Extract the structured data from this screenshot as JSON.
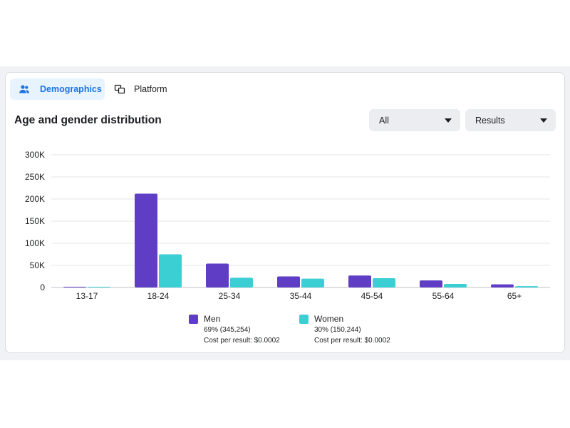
{
  "tabs": [
    {
      "label": "Demographics",
      "icon": "people-icon",
      "active": true
    },
    {
      "label": "Platform",
      "icon": "platform-icon",
      "active": false
    }
  ],
  "section_title": "Age and gender distribution",
  "filters": {
    "audience": "All",
    "metric": "Results"
  },
  "colors": {
    "men": "#5f3dc4",
    "women": "#3bcfd4",
    "accent": "#1b74e4"
  },
  "legend": [
    {
      "name": "Men",
      "share": "69% (345,254)",
      "cost": "Cost per result: $0.0002"
    },
    {
      "name": "Women",
      "share": "30% (150,244)",
      "cost": "Cost per result: $0.0002"
    }
  ],
  "chart_data": {
    "type": "bar",
    "categories": [
      "13-17",
      "18-24",
      "25-34",
      "35-44",
      "45-54",
      "55-64",
      "65+"
    ],
    "series": [
      {
        "name": "Men",
        "values": [
          1000,
          212000,
          54000,
          25000,
          27000,
          16000,
          7000
        ]
      },
      {
        "name": "Women",
        "values": [
          700,
          75000,
          22000,
          20000,
          21000,
          8000,
          3000
        ]
      }
    ],
    "y_ticks": [
      0,
      50000,
      100000,
      150000,
      200000,
      250000,
      300000
    ],
    "y_tick_labels": [
      "0",
      "50K",
      "100K",
      "150K",
      "200K",
      "250K",
      "300K"
    ],
    "ylim": [
      0,
      300000
    ],
    "grid": true,
    "legend_position": "bottom"
  }
}
